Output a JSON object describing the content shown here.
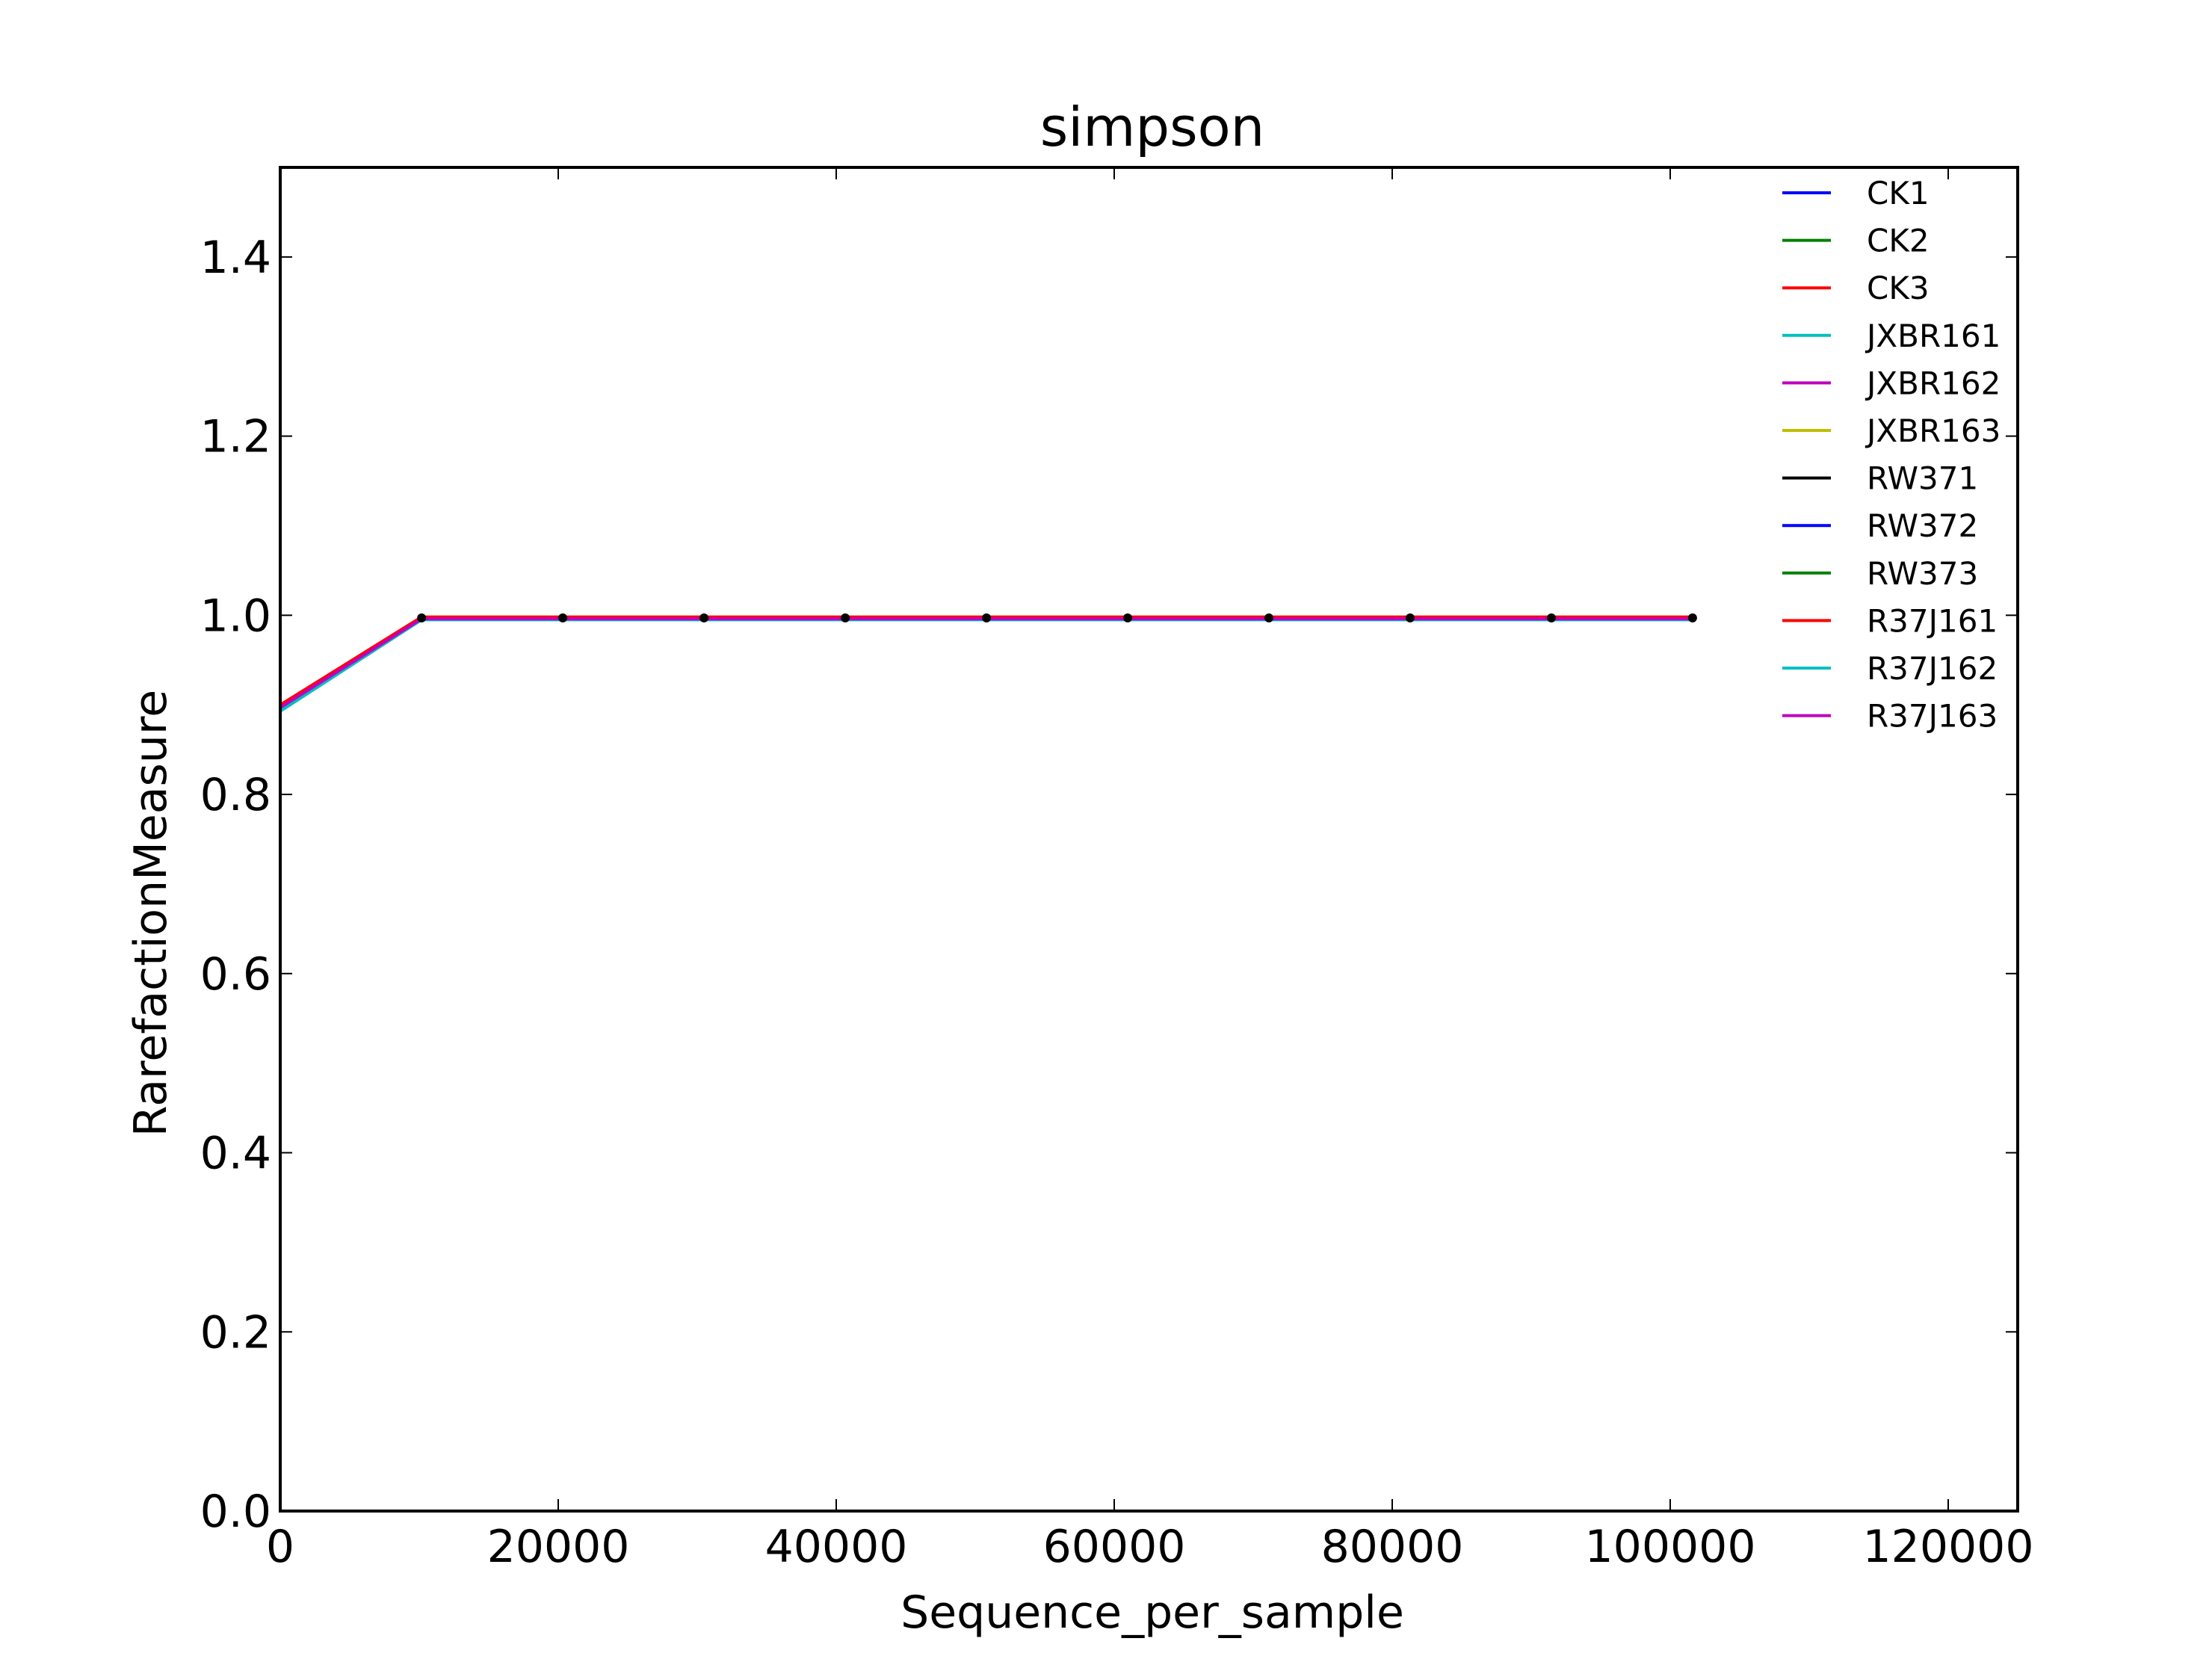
{
  "chart_data": {
    "type": "line",
    "title": "simpson",
    "xlabel": "Sequence_per_sample",
    "ylabel": "RarefactionMeasure",
    "xlim": [
      0,
      125000
    ],
    "ylim": [
      0.0,
      1.5
    ],
    "x_ticks": [
      0,
      20000,
      40000,
      60000,
      80000,
      100000,
      120000
    ],
    "x_tick_labels": [
      "0",
      "20000",
      "40000",
      "60000",
      "80000",
      "100000",
      "120000"
    ],
    "y_ticks": [
      0.0,
      0.2,
      0.4,
      0.6,
      0.8,
      1.0,
      1.2,
      1.4
    ],
    "y_tick_labels": [
      "0.0",
      "0.2",
      "0.4",
      "0.6",
      "0.8",
      "1.0",
      "1.2",
      "1.4"
    ],
    "grid": false,
    "legend_position": "top-right",
    "x": [
      10,
      10170,
      20330,
      30490,
      40650,
      50810,
      60970,
      71130,
      81290,
      91450,
      101610
    ],
    "series": [
      {
        "name": "CK1",
        "color": "#0000ff",
        "values": [
          0.898,
          0.996,
          0.996,
          0.996,
          0.996,
          0.996,
          0.996,
          0.996,
          0.996,
          0.996,
          0.996
        ]
      },
      {
        "name": "CK2",
        "color": "#008000",
        "values": [
          0.899,
          0.997,
          0.997,
          0.997,
          0.997,
          0.997,
          0.997,
          0.997,
          0.997,
          0.997,
          0.997
        ]
      },
      {
        "name": "CK3",
        "color": "#ff0000",
        "values": [
          0.9,
          0.998,
          0.998,
          0.998,
          0.998,
          0.998,
          0.998,
          0.998,
          0.998,
          0.998,
          0.998
        ]
      },
      {
        "name": "JXBR161",
        "color": "#00bfbf",
        "values": [
          0.893,
          0.995,
          0.995,
          0.995,
          0.995,
          0.995,
          0.995,
          0.995,
          0.995,
          0.995,
          0.995
        ]
      },
      {
        "name": "JXBR162",
        "color": "#bf00bf",
        "values": [
          0.897,
          0.996,
          0.996,
          0.996,
          0.996,
          0.996,
          0.996,
          0.996,
          0.996,
          0.996,
          0.996
        ]
      },
      {
        "name": "JXBR163",
        "color": "#bfbf00",
        "values": [
          0.899,
          0.998,
          0.998,
          0.998,
          0.998,
          0.998,
          0.998,
          0.998,
          0.998,
          0.998,
          0.998
        ]
      },
      {
        "name": "RW371",
        "color": "#000000",
        "values": [
          0.898,
          0.997,
          0.997,
          0.997,
          0.997,
          0.997,
          0.997,
          0.997,
          0.997,
          0.997,
          0.997
        ]
      },
      {
        "name": "RW372",
        "color": "#0000ff",
        "values": [
          0.897,
          0.997,
          0.997,
          0.997,
          0.997,
          0.997,
          0.997,
          0.997,
          0.997,
          0.997,
          0.997
        ]
      },
      {
        "name": "RW373",
        "color": "#008000",
        "values": [
          0.899,
          0.997,
          0.997,
          0.997,
          0.997,
          0.997,
          0.997,
          0.997,
          0.997,
          0.997,
          0.997
        ]
      },
      {
        "name": "R37J161",
        "color": "#ff0000",
        "values": [
          0.9,
          0.998,
          0.998,
          0.998,
          0.998,
          0.998,
          0.998,
          0.998,
          0.998,
          0.998,
          0.998
        ]
      },
      {
        "name": "R37J162",
        "color": "#00bfbf",
        "values": [
          0.895,
          0.995,
          0.995,
          0.995,
          0.995,
          0.995,
          0.995,
          0.995,
          0.995,
          0.995,
          0.995
        ]
      },
      {
        "name": "R37J163",
        "color": "#bf00bf",
        "values": [
          0.897,
          0.996,
          0.996,
          0.996,
          0.996,
          0.996,
          0.996,
          0.996,
          0.996,
          0.996,
          0.996
        ]
      }
    ],
    "markers": {
      "color": "#000000",
      "x": [
        10170,
        20330,
        30490,
        40650,
        50810,
        60970,
        71130,
        81290,
        91450,
        101610
      ],
      "values": [
        0.997,
        0.997,
        0.997,
        0.997,
        0.997,
        0.997,
        0.997,
        0.997,
        0.997,
        0.997
      ]
    }
  }
}
